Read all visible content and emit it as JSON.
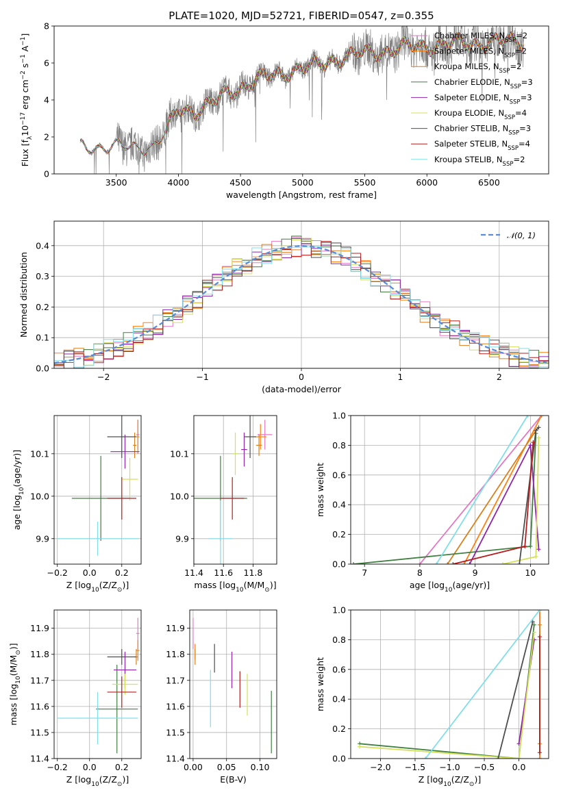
{
  "figure": {
    "title": "PLATE=1020, MJD=52721, FIBERID=0547, z=0.355"
  },
  "legend_entries": [
    {
      "name": "Chabrier MILES, N",
      "sub": "SSP",
      "suffix": "=2",
      "color": "#e377c2"
    },
    {
      "name": "Salpeter MILES, N",
      "sub": "SSP",
      "suffix": "=2",
      "color": "#ff7f0e"
    },
    {
      "name": "Kroupa MILES, N",
      "sub": "SSP",
      "suffix": "=2",
      "color": "#d97f1c"
    },
    {
      "name": "Chabrier ELODIE, N",
      "sub": "SSP",
      "suffix": "=3",
      "color": "#3f7f3f"
    },
    {
      "name": "Salpeter ELODIE, N",
      "sub": "SSP",
      "suffix": "=3",
      "color": "#8e24aa"
    },
    {
      "name": "Kroupa ELODIE, N",
      "sub": "SSP",
      "suffix": "=4",
      "color": "#d4e157"
    },
    {
      "name": "Chabrier STELIB, N",
      "sub": "SSP",
      "suffix": "=3",
      "color": "#4d4d4d"
    },
    {
      "name": "Salpeter STELIB, N",
      "sub": "SSP",
      "suffix": "=4",
      "color": "#b71c1c"
    },
    {
      "name": "Kroupa STELIB, N",
      "sub": "SSP",
      "suffix": "=2",
      "color": "#80deea"
    }
  ],
  "colors": {
    "data": "#808080",
    "gaussian": "#5b8bd6",
    "grid": "#b0b0b0"
  },
  "chart_data": [
    {
      "id": "spectrum",
      "type": "line",
      "title": "PLATE=1020, MJD=52721, FIBERID=0547, z=0.355",
      "xlabel": "wavelength [Angstrom, rest frame]",
      "ylabel_parts": [
        "Flux [f",
        "λ",
        "10",
        "−17",
        " erg cm",
        "−2",
        " s",
        "−1",
        " A",
        "−1",
        "]"
      ],
      "xlim": [
        3000,
        6980
      ],
      "ylim": [
        0,
        8
      ],
      "xticks": [
        "3500",
        "4000",
        "4500",
        "5000",
        "5500",
        "6000",
        "6500"
      ],
      "yticks": [
        "0",
        "2",
        "4",
        "6",
        "8"
      ],
      "grid": false,
      "legend": "top-right",
      "continuum_anchors": [
        [
          3210,
          1.45
        ],
        [
          3400,
          1.5
        ],
        [
          3600,
          1.4
        ],
        [
          3700,
          1.5
        ],
        [
          3800,
          1.5
        ],
        [
          3900,
          2.2
        ],
        [
          4000,
          3.5
        ],
        [
          4150,
          3.45
        ],
        [
          4300,
          3.9
        ],
        [
          4400,
          4.4
        ],
        [
          4600,
          5.0
        ],
        [
          4900,
          5.6
        ],
        [
          5100,
          5.8
        ],
        [
          5300,
          6.3
        ],
        [
          5500,
          6.5
        ],
        [
          5800,
          6.8
        ],
        [
          6100,
          7.0
        ],
        [
          6400,
          7.1
        ],
        [
          6780,
          7.2
        ]
      ]
    },
    {
      "id": "residual-histogram",
      "type": "bar",
      "xlabel": "(data-model)/error",
      "ylabel": "Normed distribution",
      "xlim": [
        -2.5,
        2.5
      ],
      "ylim": [
        0,
        0.48
      ],
      "xticks": [
        "−2",
        "−1",
        "0",
        "1",
        "2"
      ],
      "yticks": [
        "0.0",
        "0.1",
        "0.2",
        "0.3",
        "0.4"
      ],
      "grid": true,
      "legend": "top-right",
      "gaussian_label": "𝒩(0, 1)",
      "bin_width": 0.1,
      "note": "nine step histograms, one per model, each approximately following N(0,1)"
    },
    {
      "id": "age-vs-Z",
      "type": "scatter",
      "xlabel_parts": [
        "Z [log",
        "10",
        "(Z/Z",
        "⊙",
        ")]"
      ],
      "ylabel_parts": [
        "age  [log",
        "10",
        "(age/yr)]"
      ],
      "xlim": [
        -0.22,
        0.32
      ],
      "ylim": [
        9.84,
        10.19
      ],
      "xticks": [
        "−0.2",
        "0.0",
        "0.2"
      ],
      "yticks": [
        "9.9",
        "10.0",
        "10.1"
      ],
      "grid": true,
      "points": [
        {
          "model": 0,
          "x": 0.3,
          "xerr": 0.01,
          "y": 10.145,
          "yerr": 0.035
        },
        {
          "model": 1,
          "x": 0.3,
          "xerr": 0.01,
          "y": 10.14,
          "yerr": 0.04
        },
        {
          "model": 2,
          "x": 0.28,
          "xerr": 0.01,
          "y": 10.12,
          "yerr": 0.03
        },
        {
          "model": 3,
          "x": 0.07,
          "xerr": 0.18,
          "y": 9.995,
          "yerr": 0.1
        },
        {
          "model": 4,
          "x": 0.22,
          "xerr": 0.09,
          "y": 10.105,
          "yerr": 0.04
        },
        {
          "model": 5,
          "x": 0.25,
          "xerr": 0.05,
          "y": 10.04,
          "yerr": 0.05
        },
        {
          "model": 6,
          "x": 0.2,
          "xerr": 0.09,
          "y": 10.14,
          "yerr": 0.05
        },
        {
          "model": 7,
          "x": 0.2,
          "xerr": 0.09,
          "y": 9.995,
          "yerr": 0.05
        },
        {
          "model": 8,
          "x": 0.05,
          "xerr": 0.25,
          "y": 9.9,
          "yerr": 0.04
        }
      ]
    },
    {
      "id": "age-vs-mass",
      "type": "scatter",
      "xlabel_parts": [
        "mass [log",
        "10",
        "(M/M",
        "⊙",
        ")]"
      ],
      "xlim": [
        11.4,
        11.96
      ],
      "ylim": [
        9.84,
        10.19
      ],
      "xticks": [
        "11.4",
        "11.6",
        "11.8"
      ],
      "yticks": [
        "9.9",
        "10.0",
        "10.1"
      ],
      "grid": true,
      "points": [
        {
          "model": 0,
          "x": 11.88,
          "xerr": 0.05,
          "y": 10.145,
          "yerr": 0.035
        },
        {
          "model": 1,
          "x": 11.85,
          "xerr": 0.04,
          "y": 10.14,
          "yerr": 0.03
        },
        {
          "model": 2,
          "x": 11.84,
          "xerr": 0.02,
          "y": 10.12,
          "yerr": 0.025
        },
        {
          "model": 3,
          "x": 11.58,
          "xerr": 0.18,
          "y": 9.995,
          "yerr": 0.1
        },
        {
          "model": 4,
          "x": 11.74,
          "xerr": 0.02,
          "y": 10.11,
          "yerr": 0.04
        },
        {
          "model": 5,
          "x": 11.68,
          "xerr": 0.02,
          "y": 10.1,
          "yerr": 0.05
        },
        {
          "model": 6,
          "x": 11.78,
          "xerr": 0.04,
          "y": 10.14,
          "yerr": 0.05
        },
        {
          "model": 7,
          "x": 11.66,
          "xerr": 0.08,
          "y": 9.995,
          "yerr": 0.05
        },
        {
          "model": 8,
          "x": 11.58,
          "xerr": 0.08,
          "y": 9.9,
          "yerr": 0.09
        }
      ]
    },
    {
      "id": "mass-weight-vs-age",
      "type": "line",
      "xlabel_parts": [
        "age  [log",
        "10",
        "(age/yr)]"
      ],
      "ylabel": "mass weight",
      "xlim": [
        6.75,
        10.33
      ],
      "ylim": [
        0,
        1
      ],
      "xticks": [
        "7",
        "8",
        "9",
        "10"
      ],
      "yticks": [
        "0.0",
        "0.2",
        "0.4",
        "0.6",
        "0.8",
        "1.0"
      ],
      "grid": true,
      "series": [
        {
          "model": 0,
          "points": [
            [
              8.0,
              0.0
            ],
            [
              10.2,
              1.0
            ]
          ]
        },
        {
          "model": 1,
          "points": [
            [
              8.8,
              0.0
            ],
            [
              10.2,
              1.0
            ]
          ]
        },
        {
          "model": 2,
          "points": [
            [
              8.5,
              0.0
            ],
            [
              10.1,
              0.9
            ]
          ]
        },
        {
          "model": 3,
          "points": [
            [
              6.8,
              0.0
            ],
            [
              10.0,
              0.12
            ],
            [
              10.1,
              0.88
            ]
          ]
        },
        {
          "model": 4,
          "points": [
            [
              8.9,
              0.0
            ],
            [
              10.0,
              0.8
            ],
            [
              10.15,
              0.1
            ]
          ]
        },
        {
          "model": 5,
          "points": [
            [
              9.5,
              0.0
            ],
            [
              10.1,
              0.05
            ],
            [
              10.15,
              0.85
            ]
          ]
        },
        {
          "model": 6,
          "points": [
            [
              9.8,
              0.0
            ],
            [
              10.1,
              0.9
            ],
            [
              10.15,
              0.92
            ]
          ]
        },
        {
          "model": 7,
          "points": [
            [
              8.6,
              0.0
            ],
            [
              9.9,
              0.12
            ],
            [
              10.05,
              0.82
            ]
          ]
        },
        {
          "model": 8,
          "points": [
            [
              8.3,
              0.0
            ],
            [
              9.95,
              1.0
            ]
          ]
        }
      ]
    },
    {
      "id": "mass-vs-Z",
      "type": "scatter",
      "xlabel_parts": [
        "Z [log",
        "10",
        "(Z/Z",
        "⊙",
        ")]"
      ],
      "ylabel_parts": [
        "mass [log",
        "10",
        "(M/M",
        "⊙",
        ")]"
      ],
      "xlim": [
        -0.22,
        0.32
      ],
      "ylim": [
        11.4,
        11.97
      ],
      "xticks": [
        "−0.2",
        "0.0",
        "0.2"
      ],
      "yticks": [
        "11.4",
        "11.5",
        "11.6",
        "11.7",
        "11.8",
        "11.9"
      ],
      "grid": true,
      "points": [
        {
          "model": 0,
          "x": 0.3,
          "xerr": 0.01,
          "y": 11.88,
          "yerr": 0.06
        },
        {
          "model": 1,
          "x": 0.3,
          "xerr": 0.01,
          "y": 11.815,
          "yerr": 0.04
        },
        {
          "model": 2,
          "x": 0.29,
          "xerr": 0.01,
          "y": 11.79,
          "yerr": 0.03
        },
        {
          "model": 3,
          "x": 0.17,
          "xerr": 0.13,
          "y": 11.59,
          "yerr": 0.17
        },
        {
          "model": 4,
          "x": 0.22,
          "xerr": 0.07,
          "y": 11.74,
          "yerr": 0.07
        },
        {
          "model": 5,
          "x": 0.22,
          "xerr": 0.08,
          "y": 11.685,
          "yerr": 0.04
        },
        {
          "model": 6,
          "x": 0.2,
          "xerr": 0.09,
          "y": 11.79,
          "yerr": 0.03
        },
        {
          "model": 7,
          "x": 0.2,
          "xerr": 0.09,
          "y": 11.655,
          "yerr": 0.06
        },
        {
          "model": 8,
          "x": 0.05,
          "xerr": 0.25,
          "y": 11.555,
          "yerr": 0.1
        }
      ]
    },
    {
      "id": "mass-vs-ebv",
      "type": "scatter",
      "xlabel": "E(B-V)",
      "xlim": [
        -0.005,
        0.125
      ],
      "ylim": [
        11.4,
        11.97
      ],
      "xticks": [
        "0.00",
        "0.05",
        "0.10"
      ],
      "yticks": [
        "11.4",
        "11.5",
        "11.6",
        "11.7",
        "11.8",
        "11.9"
      ],
      "grid": true,
      "points": [
        {
          "model": 0,
          "x": 0.0,
          "xerr": 0.0,
          "y": 11.88,
          "yerr": 0.06
        },
        {
          "model": 1,
          "x": 0.003,
          "xerr": 0.0,
          "y": 11.81,
          "yerr": 0.03
        },
        {
          "model": 2,
          "x": 0.003,
          "xerr": 0.0,
          "y": 11.79,
          "yerr": 0.03
        },
        {
          "model": 3,
          "x": 0.117,
          "xerr": 0.0,
          "y": 11.54,
          "yerr": 0.12
        },
        {
          "model": 4,
          "x": 0.058,
          "xerr": 0.0,
          "y": 11.74,
          "yerr": 0.07
        },
        {
          "model": 5,
          "x": 0.081,
          "xerr": 0.0,
          "y": 11.645,
          "yerr": 0.08
        },
        {
          "model": 6,
          "x": 0.032,
          "xerr": 0.0,
          "y": 11.785,
          "yerr": 0.055
        },
        {
          "model": 7,
          "x": 0.07,
          "xerr": 0.0,
          "y": 11.665,
          "yerr": 0.07
        },
        {
          "model": 8,
          "x": 0.026,
          "xerr": 0.0,
          "y": 11.63,
          "yerr": 0.11
        }
      ]
    },
    {
      "id": "mass-weight-vs-Z",
      "type": "line",
      "xlabel_parts": [
        "Z [log",
        "10",
        "(Z/Z",
        "⊙",
        ")]"
      ],
      "ylabel": "mass weight",
      "xlim": [
        -2.43,
        0.43
      ],
      "ylim": [
        0,
        1
      ],
      "xticks": [
        "−2.0",
        "−1.5",
        "−1.0",
        "−0.5",
        "0.0"
      ],
      "yticks": [
        "0.0",
        "0.2",
        "0.4",
        "0.6",
        "0.8",
        "1.0"
      ],
      "grid": true,
      "series": [
        {
          "model": 0,
          "points": [
            [
              0.3,
              0.0
            ],
            [
              0.3,
              1.0
            ]
          ]
        },
        {
          "model": 1,
          "points": [
            [
              0.3,
              0.0
            ],
            [
              0.3,
              1.0
            ]
          ]
        },
        {
          "model": 2,
          "points": [
            [
              0.3,
              0.1
            ],
            [
              0.3,
              0.9
            ]
          ]
        },
        {
          "model": 3,
          "points": [
            [
              -2.3,
              0.1
            ],
            [
              0.0,
              0.0
            ],
            [
              0.22,
              0.9
            ]
          ]
        },
        {
          "model": 4,
          "points": [
            [
              0.0,
              0.1
            ],
            [
              0.22,
              0.8
            ]
          ]
        },
        {
          "model": 5,
          "points": [
            [
              -2.3,
              0.08
            ],
            [
              0.0,
              0.0
            ],
            [
              0.22,
              0.85
            ]
          ]
        },
        {
          "model": 6,
          "points": [
            [
              -0.3,
              0.0
            ],
            [
              0.2,
              0.92
            ]
          ]
        },
        {
          "model": 7,
          "points": [
            [
              0.3,
              0.04
            ],
            [
              0.3,
              0.82
            ]
          ]
        },
        {
          "model": 8,
          "points": [
            [
              -1.35,
              0.0
            ],
            [
              0.3,
              1.0
            ]
          ]
        }
      ]
    }
  ]
}
